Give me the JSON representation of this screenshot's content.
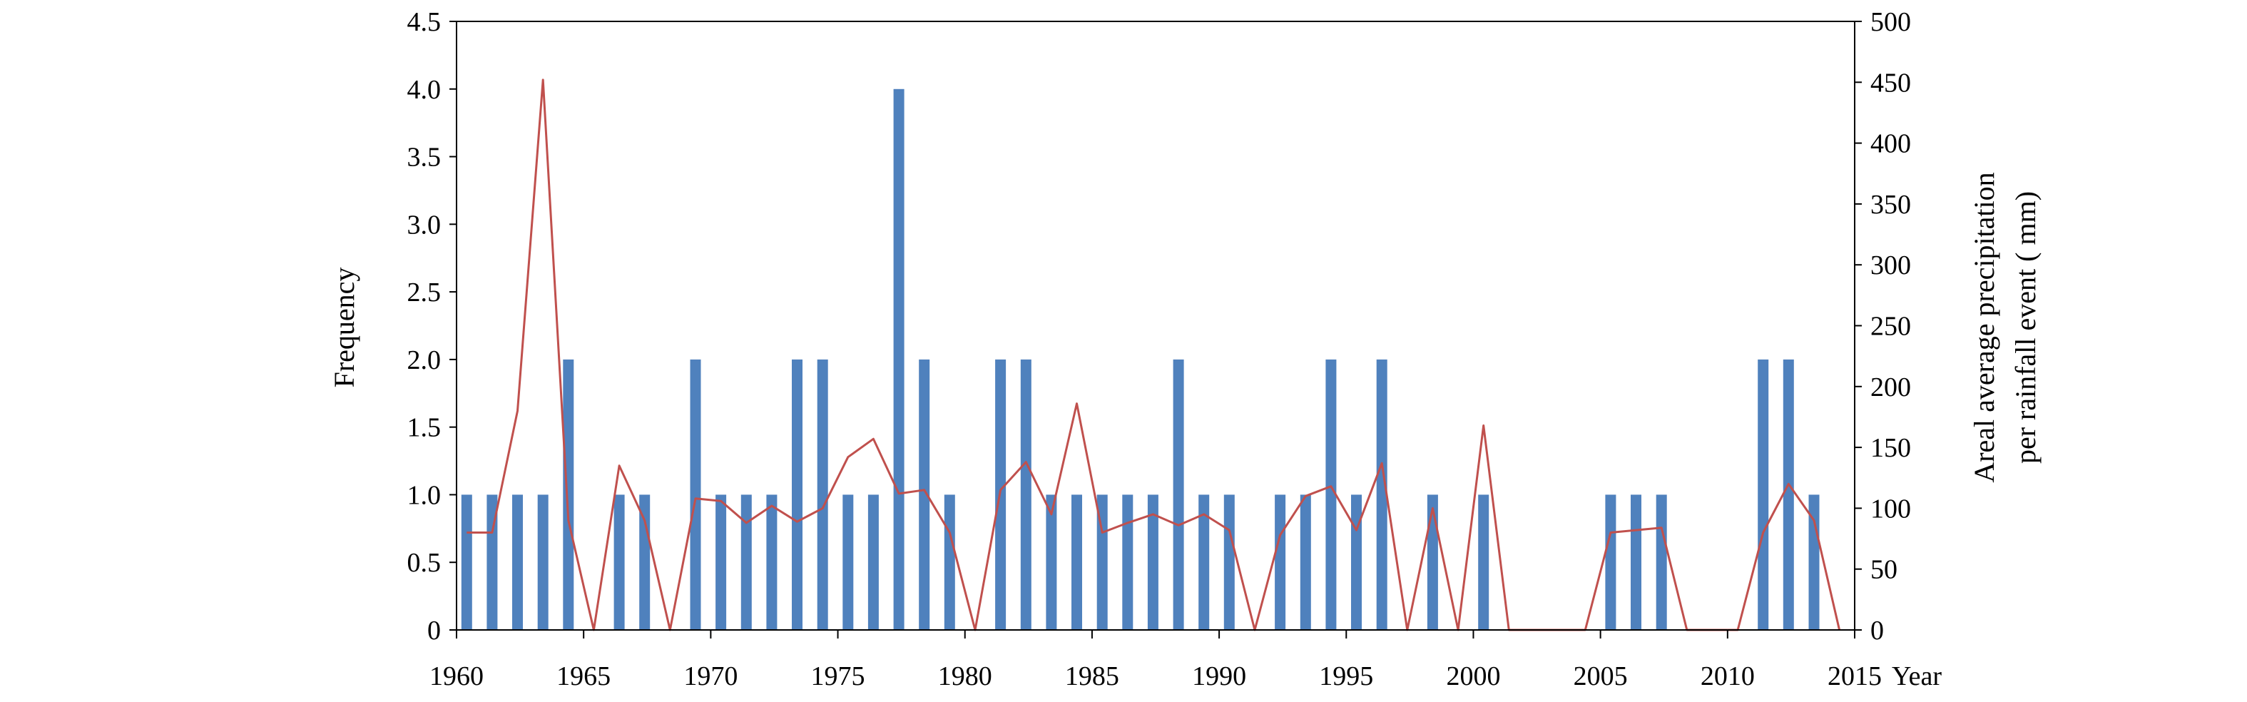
{
  "chart_data": {
    "type": "bar+line",
    "x_ticks": [
      "1960",
      "1965",
      "1970",
      "1975",
      "1980",
      "1985",
      "1990",
      "1995",
      "2000",
      "2005",
      "2010",
      "2015"
    ],
    "x_unit": "Year",
    "xlim": [
      1960,
      2015
    ],
    "left_axis": {
      "label": "Frequency",
      "ylim": [
        0,
        4.5
      ],
      "ticks": [
        "0",
        "0.5",
        "1.0",
        "1.5",
        "2.0",
        "2.5",
        "3.0",
        "3.5",
        "4.0",
        "4.5"
      ]
    },
    "right_axis": {
      "label_lines": [
        "Areal average precipitation",
        "per rainfall event ( mm)"
      ],
      "ylim": [
        0,
        500
      ],
      "ticks": [
        "0",
        "50",
        "100",
        "150",
        "200",
        "250",
        "300",
        "350",
        "400",
        "450",
        "500"
      ]
    },
    "colors": {
      "bars": "#4f81bd",
      "line": "#c0504d"
    },
    "bars": {
      "x": [
        1960.4,
        1961.4,
        1962.4,
        1963.4,
        1964.4,
        1966.4,
        1967.4,
        1969.4,
        1970.4,
        1971.4,
        1972.4,
        1973.4,
        1974.4,
        1975.4,
        1976.4,
        1977.4,
        1978.4,
        1979.4,
        1981.4,
        1982.4,
        1983.4,
        1984.4,
        1985.4,
        1986.4,
        1987.4,
        1988.4,
        1989.4,
        1990.4,
        1992.4,
        1993.4,
        1994.4,
        1995.4,
        1996.4,
        1998.4,
        2000.4,
        2005.4,
        2006.4,
        2007.4,
        2011.4,
        2012.4,
        2013.4
      ],
      "values": [
        1,
        1,
        1,
        1,
        2,
        1,
        1,
        2,
        1,
        1,
        1,
        2,
        2,
        1,
        1,
        4,
        2,
        1,
        2,
        2,
        1,
        1,
        1,
        1,
        1,
        2,
        1,
        1,
        1,
        1,
        2,
        1,
        2,
        1,
        1,
        1,
        1,
        1,
        2,
        2,
        1
      ]
    },
    "line": {
      "x": [
        1960.4,
        1961.4,
        1962.4,
        1963.4,
        1964.4,
        1965.4,
        1966.4,
        1967.4,
        1968.4,
        1969.4,
        1970.4,
        1971.4,
        1972.4,
        1973.4,
        1974.4,
        1975.4,
        1976.4,
        1977.4,
        1978.4,
        1979.4,
        1980.4,
        1981.4,
        1982.4,
        1983.4,
        1984.4,
        1985.4,
        1986.4,
        1987.4,
        1988.4,
        1989.4,
        1990.4,
        1991.4,
        1992.4,
        1993.4,
        1994.4,
        1995.4,
        1996.4,
        1997.4,
        1998.4,
        1999.4,
        2000.4,
        2001.4,
        2002.4,
        2003.4,
        2004.4,
        2005.4,
        2006.4,
        2007.4,
        2008.4,
        2009.4,
        2010.4,
        2011.4,
        2012.4,
        2013.4,
        2014.4
      ],
      "values": [
        80,
        80,
        180,
        452,
        90,
        0,
        135,
        90,
        0,
        108,
        106,
        88,
        102,
        89,
        100,
        142,
        157,
        112,
        115,
        80,
        0,
        115,
        138,
        95,
        186,
        80,
        88,
        95,
        86,
        95,
        82,
        0,
        78,
        110,
        118,
        82,
        137,
        0,
        100,
        0,
        168,
        0,
        0,
        0,
        0,
        80,
        82,
        84,
        0,
        0,
        0,
        80,
        120,
        90,
        0
      ]
    }
  }
}
